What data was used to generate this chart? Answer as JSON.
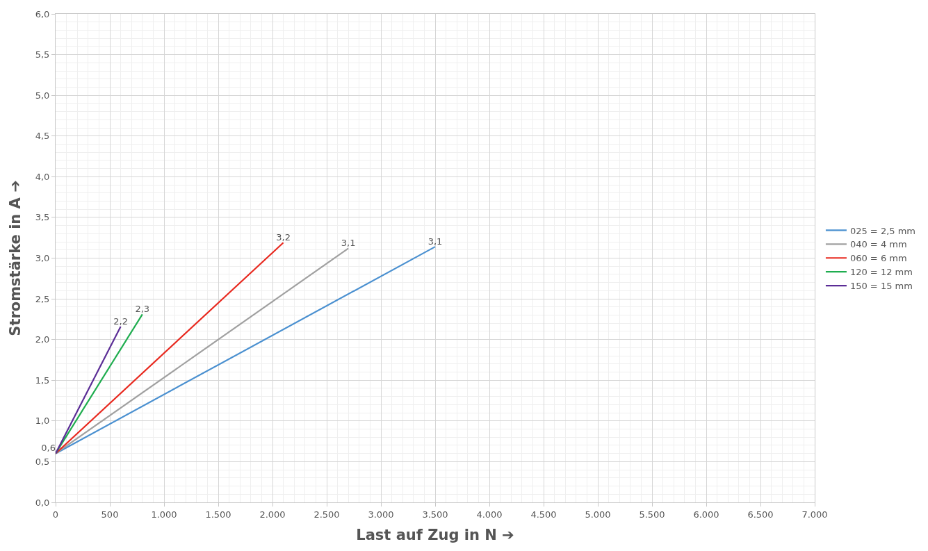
{
  "chart_data": {
    "type": "line",
    "xlabel": "Last auf Zug in N ➔",
    "ylabel": "Stromstärke in A ➔",
    "xlim": [
      0,
      7000
    ],
    "xticks": [
      0,
      {
        "value": 500,
        "label": "500"
      },
      {
        "value": 1000,
        "label": "1.000"
      },
      {
        "value": 1500,
        "label": "1.500"
      },
      {
        "value": 2000,
        "label": "2.000"
      },
      {
        "value": 2500,
        "label": "2.500"
      },
      {
        "value": 3000,
        "label": "3.000"
      },
      {
        "value": 3500,
        "label": "3.500"
      },
      {
        "value": 4000,
        "label": "4.000"
      },
      {
        "value": 4500,
        "label": "4.500"
      },
      {
        "value": 5000,
        "label": "5.000"
      },
      {
        "value": 5500,
        "label": "5.500"
      },
      {
        "value": 6000,
        "label": "6.000"
      },
      {
        "value": 6500,
        "label": "6.500"
      },
      {
        "value": 7000,
        "label": "7.000"
      }
    ],
    "ylim": [
      0,
      6
    ],
    "yticks": [
      {
        "value": 0,
        "label": "0,0"
      },
      {
        "value": 0.5,
        "label": "0,5"
      },
      {
        "value": 1,
        "label": "1,0"
      },
      {
        "value": 1.5,
        "label": "1,5"
      },
      {
        "value": 2,
        "label": "2,0"
      },
      {
        "value": 2.5,
        "label": "2,5"
      },
      {
        "value": 3,
        "label": "3,0"
      },
      {
        "value": 3.5,
        "label": "3,5"
      },
      {
        "value": 4,
        "label": "4,0"
      },
      {
        "value": 4.5,
        "label": "4,5"
      },
      {
        "value": 5,
        "label": "5,0"
      },
      {
        "value": 5.5,
        "label": "5,5"
      },
      {
        "value": 6,
        "label": "6,0"
      }
    ],
    "grid": true,
    "legend": "right",
    "marker": "none",
    "line_style": "solid",
    "series": [
      {
        "name": "025 = 2,5 mm",
        "color": "#4a90d0",
        "x": [
          0,
          3500
        ],
        "values": [
          0.6,
          3.14
        ],
        "value_labels": [
          "0,6",
          "3,1"
        ]
      },
      {
        "name": "040 = 4 mm",
        "color": "#a0a0a0",
        "x": [
          0,
          2700
        ],
        "values": [
          0.6,
          3.12
        ],
        "value_labels": [
          null,
          "3,1"
        ]
      },
      {
        "name": "060 = 6 mm",
        "color": "#e8281e",
        "x": [
          0,
          2100
        ],
        "values": [
          0.6,
          3.19
        ],
        "value_labels": [
          null,
          "3,2"
        ]
      },
      {
        "name": "120 = 12 mm",
        "color": "#1fad4f",
        "x": [
          0,
          800
        ],
        "values": [
          0.6,
          2.31
        ],
        "value_labels": [
          null,
          "2,3"
        ]
      },
      {
        "name": "150 = 15 mm",
        "color": "#5b2d96",
        "x": [
          0,
          600
        ],
        "values": [
          0.6,
          2.16
        ],
        "value_labels": [
          null,
          "2,2"
        ]
      }
    ]
  }
}
